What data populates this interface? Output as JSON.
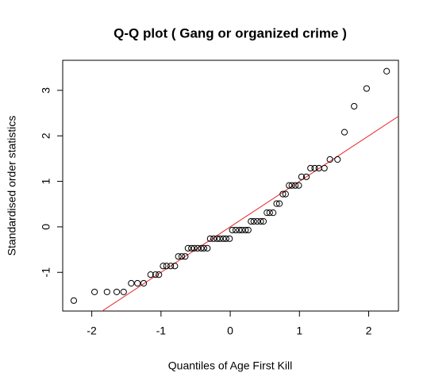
{
  "chart_data": {
    "type": "scatter",
    "title": "Q-Q plot ( Gang or organized crime )",
    "x_label": "Quantiles of Age First Kill",
    "y_label": "Standardised order statistics",
    "x": [
      -2.26,
      -1.96,
      -1.78,
      -1.64,
      -1.54,
      -1.43,
      -1.34,
      -1.25,
      -1.15,
      -1.08,
      -1.03,
      -0.97,
      -0.92,
      -0.86,
      -0.8,
      -0.75,
      -0.7,
      -0.65,
      -0.61,
      -0.56,
      -0.52,
      -0.47,
      -0.42,
      -0.38,
      -0.33,
      -0.29,
      -0.24,
      -0.19,
      -0.15,
      -0.1,
      -0.06,
      -0.01,
      0.03,
      0.08,
      0.13,
      0.17,
      0.22,
      0.26,
      0.3,
      0.34,
      0.39,
      0.44,
      0.48,
      0.53,
      0.57,
      0.62,
      0.67,
      0.71,
      0.76,
      0.8,
      0.85,
      0.89,
      0.94,
      0.99,
      1.03,
      1.1,
      1.16,
      1.22,
      1.28,
      1.36,
      1.44,
      1.55,
      1.65,
      1.79,
      1.97,
      2.26
    ],
    "values": [
      -1.62,
      -1.43,
      -1.43,
      -1.43,
      -1.43,
      -1.24,
      -1.24,
      -1.24,
      -1.05,
      -1.05,
      -1.05,
      -0.86,
      -0.86,
      -0.86,
      -0.86,
      -0.65,
      -0.65,
      -0.65,
      -0.47,
      -0.47,
      -0.47,
      -0.47,
      -0.47,
      -0.47,
      -0.47,
      -0.26,
      -0.26,
      -0.26,
      -0.26,
      -0.26,
      -0.26,
      -0.26,
      -0.07,
      -0.07,
      -0.07,
      -0.07,
      -0.07,
      -0.07,
      0.12,
      0.12,
      0.12,
      0.12,
      0.12,
      0.31,
      0.31,
      0.31,
      0.51,
      0.51,
      0.72,
      0.72,
      0.91,
      0.91,
      0.91,
      0.91,
      1.1,
      1.1,
      1.29,
      1.29,
      1.29,
      1.29,
      1.48,
      1.48,
      2.08,
      2.65,
      3.04,
      3.42
    ],
    "color": "#000000",
    "reference_line": {
      "intercept": 0,
      "slope": 1,
      "color": "#e8262b"
    },
    "xlim": [
      -2.42,
      2.43
    ],
    "ylim": [
      -1.85,
      3.66
    ],
    "xticks": [
      -2,
      -1,
      0,
      1,
      2
    ],
    "yticks": [
      -1,
      0,
      1,
      2,
      3
    ],
    "grid": false
  }
}
